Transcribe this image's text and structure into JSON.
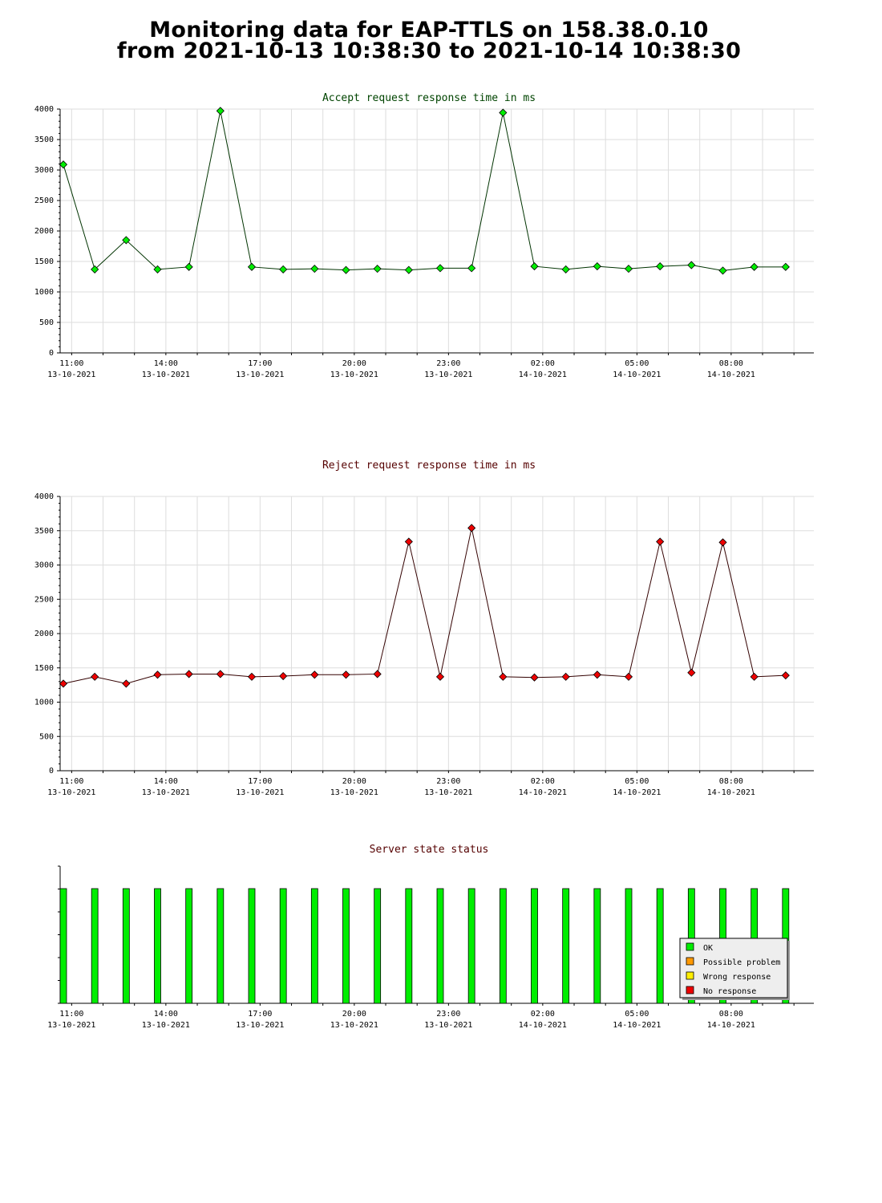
{
  "page": {
    "title_line1": "Monitoring data for EAP-TTLS on 158.38.0.10",
    "title_line2": "from 2021-10-13 10:38:30 to 2021-10-14 10:38:30"
  },
  "chart_data": [
    {
      "type": "line",
      "title": "Accept request response time in ms",
      "title_color": "#004400",
      "line_color": "#003300",
      "marker_color": "#00ee00",
      "xlabel": "",
      "ylabel": "",
      "ylim": [
        0,
        4000
      ],
      "yticks": [
        "0",
        "500",
        "1000",
        "1500",
        "2000",
        "2500",
        "3000",
        "3500",
        "4000"
      ],
      "grid": true,
      "xticks": [
        {
          "time": "11:00",
          "date": "13-10-2021"
        },
        {
          "time": "14:00",
          "date": "13-10-2021"
        },
        {
          "time": "17:00",
          "date": "13-10-2021"
        },
        {
          "time": "20:00",
          "date": "13-10-2021"
        },
        {
          "time": "23:00",
          "date": "13-10-2021"
        },
        {
          "time": "02:00",
          "date": "14-10-2021"
        },
        {
          "time": "05:00",
          "date": "14-10-2021"
        },
        {
          "time": "08:00",
          "date": "14-10-2021"
        }
      ],
      "x": [
        "2021-10-13 10:38",
        "2021-10-13 11:38",
        "2021-10-13 12:38",
        "2021-10-13 13:38",
        "2021-10-13 14:38",
        "2021-10-13 15:38",
        "2021-10-13 16:38",
        "2021-10-13 17:38",
        "2021-10-13 18:38",
        "2021-10-13 19:38",
        "2021-10-13 20:38",
        "2021-10-13 21:38",
        "2021-10-13 22:38",
        "2021-10-13 23:38",
        "2021-10-14 00:38",
        "2021-10-14 01:38",
        "2021-10-14 02:38",
        "2021-10-14 03:38",
        "2021-10-14 04:38",
        "2021-10-14 05:38",
        "2021-10-14 06:38",
        "2021-10-14 07:38",
        "2021-10-14 08:38",
        "2021-10-14 09:38"
      ],
      "values": [
        3090,
        1370,
        1850,
        1370,
        1410,
        3970,
        1410,
        1370,
        1380,
        1360,
        1380,
        1360,
        1390,
        1390,
        3940,
        1420,
        1370,
        1420,
        1380,
        1420,
        1440,
        1350,
        1410,
        1410
      ]
    },
    {
      "type": "line",
      "title": "Reject request response time in ms",
      "title_color": "#550000",
      "line_color": "#330000",
      "marker_color": "#ee0000",
      "xlabel": "",
      "ylabel": "",
      "ylim": [
        0,
        4000
      ],
      "yticks": [
        "0",
        "500",
        "1000",
        "1500",
        "2000",
        "2500",
        "3000",
        "3500",
        "4000"
      ],
      "grid": true,
      "xticks": [
        {
          "time": "11:00",
          "date": "13-10-2021"
        },
        {
          "time": "14:00",
          "date": "13-10-2021"
        },
        {
          "time": "17:00",
          "date": "13-10-2021"
        },
        {
          "time": "20:00",
          "date": "13-10-2021"
        },
        {
          "time": "23:00",
          "date": "13-10-2021"
        },
        {
          "time": "02:00",
          "date": "14-10-2021"
        },
        {
          "time": "05:00",
          "date": "14-10-2021"
        },
        {
          "time": "08:00",
          "date": "14-10-2021"
        }
      ],
      "x": [
        "2021-10-13 10:38",
        "2021-10-13 11:38",
        "2021-10-13 12:38",
        "2021-10-13 13:38",
        "2021-10-13 14:38",
        "2021-10-13 15:38",
        "2021-10-13 16:38",
        "2021-10-13 17:38",
        "2021-10-13 18:38",
        "2021-10-13 19:38",
        "2021-10-13 20:38",
        "2021-10-13 21:38",
        "2021-10-13 22:38",
        "2021-10-13 23:38",
        "2021-10-14 00:38",
        "2021-10-14 01:38",
        "2021-10-14 02:38",
        "2021-10-14 03:38",
        "2021-10-14 04:38",
        "2021-10-14 05:38",
        "2021-10-14 06:38",
        "2021-10-14 07:38",
        "2021-10-14 08:38",
        "2021-10-14 09:38"
      ],
      "values": [
        1270,
        1370,
        1270,
        1400,
        1410,
        1410,
        1370,
        1380,
        1400,
        1400,
        1410,
        3340,
        1370,
        3540,
        1370,
        1360,
        1370,
        1400,
        1370,
        3340,
        1430,
        3330,
        1370,
        1390
      ]
    },
    {
      "type": "bar",
      "title": "Server state status",
      "title_color": "#550000",
      "xticks": [
        {
          "time": "11:00",
          "date": "13-10-2021"
        },
        {
          "time": "14:00",
          "date": "13-10-2021"
        },
        {
          "time": "17:00",
          "date": "13-10-2021"
        },
        {
          "time": "20:00",
          "date": "13-10-2021"
        },
        {
          "time": "23:00",
          "date": "13-10-2021"
        },
        {
          "time": "02:00",
          "date": "14-10-2021"
        },
        {
          "time": "05:00",
          "date": "14-10-2021"
        },
        {
          "time": "08:00",
          "date": "14-10-2021"
        }
      ],
      "x": [
        "2021-10-13 10:38",
        "2021-10-13 11:38",
        "2021-10-13 12:38",
        "2021-10-13 13:38",
        "2021-10-13 14:38",
        "2021-10-13 15:38",
        "2021-10-13 16:38",
        "2021-10-13 17:38",
        "2021-10-13 18:38",
        "2021-10-13 19:38",
        "2021-10-13 20:38",
        "2021-10-13 21:38",
        "2021-10-13 22:38",
        "2021-10-13 23:38",
        "2021-10-14 00:38",
        "2021-10-14 01:38",
        "2021-10-14 02:38",
        "2021-10-14 03:38",
        "2021-10-14 04:38",
        "2021-10-14 05:38",
        "2021-10-14 06:38",
        "2021-10-14 07:38",
        "2021-10-14 08:38",
        "2021-10-14 09:38"
      ],
      "states": [
        "OK",
        "OK",
        "OK",
        "OK",
        "OK",
        "OK",
        "OK",
        "OK",
        "OK",
        "OK",
        "OK",
        "OK",
        "OK",
        "OK",
        "OK",
        "OK",
        "OK",
        "OK",
        "OK",
        "OK",
        "OK",
        "OK",
        "OK",
        "OK"
      ],
      "legend_placement": "bottom-right",
      "legend": [
        {
          "label": "OK",
          "color": "#00ee00"
        },
        {
          "label": "Possible problem",
          "color": "#ff9900"
        },
        {
          "label": "Wrong response",
          "color": "#ffee00"
        },
        {
          "label": "No response",
          "color": "#ee0000"
        }
      ]
    }
  ]
}
